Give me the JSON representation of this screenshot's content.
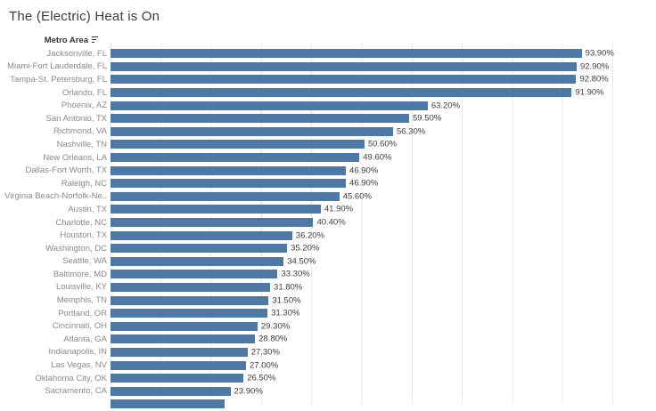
{
  "title": "The (Electric) Heat is On",
  "column_header": {
    "label": "Metro Area",
    "sort_icon": "sort-descending-icon"
  },
  "colors": {
    "bar": "#4e79a7",
    "gridline": "#e9e9e9",
    "metro_label": "#8a8a8a",
    "value_label": "#3d3d3d",
    "title": "#3c3c3c",
    "header": "#333333"
  },
  "chart_data": {
    "type": "bar",
    "orientation": "horizontal",
    "title": "The (Electric) Heat is On",
    "categories": [
      "Jacksonville, FL",
      "Miami-Fort Lauderdale, FL",
      "Tampa-St. Petersburg, FL",
      "Orlando, FL",
      "Phoenix, AZ",
      "San Antonio, TX",
      "Richmond, VA",
      "Nashville, TN",
      "New Orleans, LA",
      "Dallas-Fort Worth, TX",
      "Raleigh, NC",
      "Virginia Beach-Norfolk-Ne..",
      "Austin, TX",
      "Charlotte, NC",
      "Houston, TX",
      "Washington, DC",
      "Seattle, WA",
      "Baltimore, MD",
      "Louisville, KY",
      "Memphis, TN",
      "Portland, OR",
      "Cincinnati, OH",
      "Atlanta, GA",
      "Indianapolis, IN",
      "Las Vegas, NV",
      "Oklahoma City, OK",
      "Sacramento, CA"
    ],
    "values": [
      93.9,
      92.9,
      92.8,
      91.9,
      63.2,
      59.5,
      56.3,
      50.6,
      49.6,
      46.9,
      46.9,
      45.6,
      41.9,
      40.4,
      36.2,
      35.2,
      34.5,
      33.3,
      31.8,
      31.5,
      31.3,
      29.3,
      28.8,
      27.3,
      27.0,
      26.5,
      23.9
    ],
    "value_labels": [
      "93.90%",
      "92.90%",
      "92.80%",
      "91.90%",
      "63.20%",
      "59.50%",
      "56.30%",
      "50.60%",
      "49.60%",
      "46.90%",
      "46.90%",
      "45.60%",
      "41.90%",
      "40.40%",
      "36.20%",
      "35.20%",
      "34.50%",
      "33.30%",
      "31.80%",
      "31.50%",
      "31.30%",
      "29.30%",
      "28.80%",
      "27.30%",
      "27.00%",
      "26.50%",
      "23.90%"
    ],
    "xlim": [
      0,
      100
    ],
    "gridline_interval_pct": 10,
    "grid": true,
    "legend": "none",
    "xlabel": "",
    "ylabel": "Metro Area",
    "clipped_partial_row": {
      "approx_value_pct": 22.7
    }
  }
}
